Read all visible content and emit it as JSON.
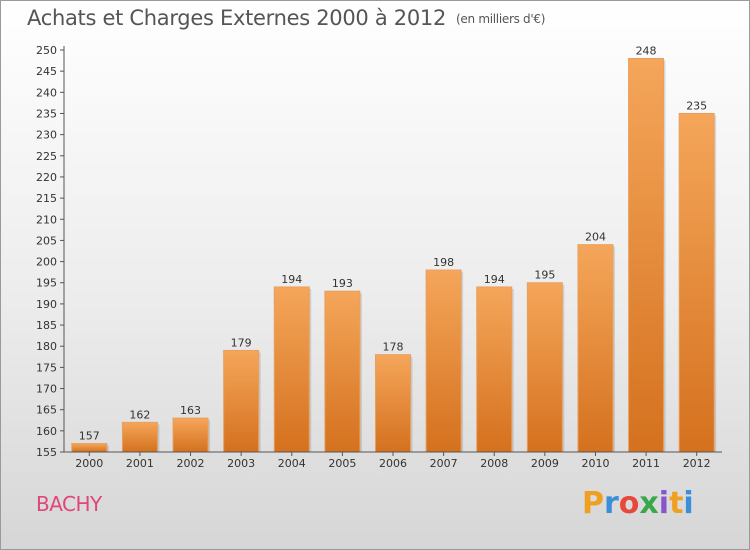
{
  "title": "Achats et Charges Externes 2000 à 2012",
  "subtitle": "(en milliers d'€)",
  "commune": "BACHY",
  "brand": {
    "letters": [
      "P",
      "r",
      "o",
      "x",
      "i",
      "t",
      "i"
    ],
    "colors": [
      "#f0a020",
      "#3a8fd8",
      "#e8473a",
      "#3aa84a",
      "#8855cc",
      "#f0a020",
      "#3a8fd8"
    ]
  },
  "chart_data": {
    "type": "bar",
    "categories": [
      "2000",
      "2001",
      "2002",
      "2003",
      "2004",
      "2005",
      "2006",
      "2007",
      "2008",
      "2009",
      "2010",
      "2011",
      "2012"
    ],
    "values": [
      157,
      162,
      163,
      179,
      194,
      193,
      178,
      198,
      194,
      195,
      204,
      248,
      235
    ],
    "data_labels": [
      "157",
      "162",
      "163",
      "179",
      "194",
      "193",
      "178",
      "198",
      "194",
      "195",
      "204",
      "248",
      "235"
    ],
    "ylim": [
      155,
      250
    ],
    "ytick_step": 5,
    "grid": false,
    "colors": {
      "bar_top": "#f5a65a",
      "bar_bottom": "#d4711e",
      "axis": "#555555",
      "text": "#333333"
    },
    "xlabel": "",
    "ylabel": ""
  }
}
